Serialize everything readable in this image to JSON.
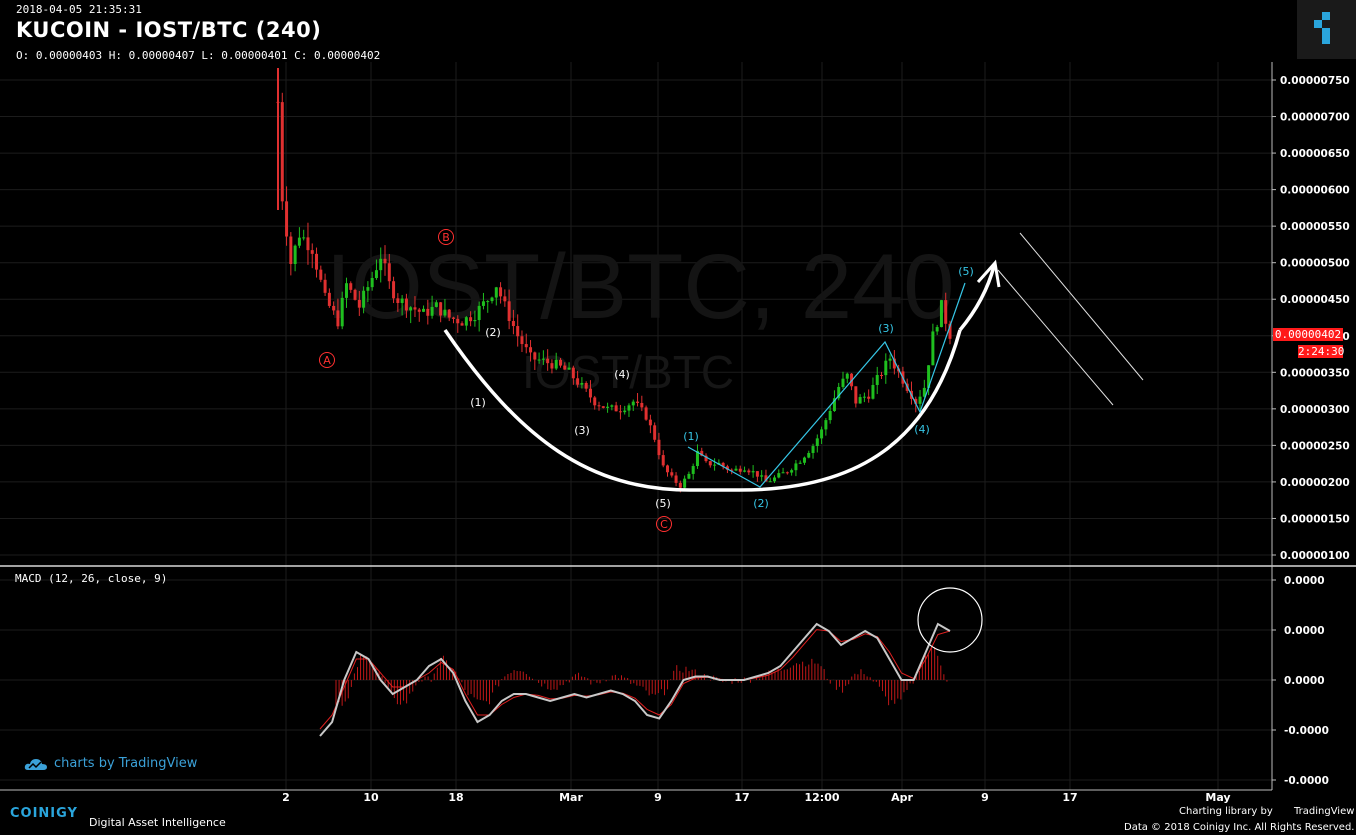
{
  "header": {
    "timestamp": "2018-04-05 21:35:31",
    "title": "KUCOIN - IOST/BTC (240)",
    "ohlc": "O: 0.00000403 H: 0.00000407 L: 0.00000401 C: 0.00000402"
  },
  "watermark": {
    "main": "IOST/BTC, 240",
    "sub": "IOST/BTC"
  },
  "price_axis_labels": [
    "0.00000750",
    "0.00000700",
    "0.00000650",
    "0.00000600",
    "0.00000550",
    "0.00000500",
    "0.00000450",
    "0.00000400",
    "0.00000350",
    "0.00000300",
    "0.00000250",
    "0.00000200",
    "0.00000150",
    "0.00000100"
  ],
  "last_price_tag": "0.00000402",
  "countdown_tag": "2:24:30",
  "macd": {
    "label": "MACD (12, 26, close, 9)",
    "axis_labels": [
      "0.0000",
      "0.0000",
      "0.0000",
      "-0.0000",
      "-0.0000"
    ]
  },
  "time_axis_labels": [
    "2",
    "10",
    "18",
    "Mar",
    "9",
    "17",
    "12:00",
    "Apr",
    "9",
    "17",
    "May"
  ],
  "wave_labels": {
    "abc": [
      "A",
      "B",
      "C"
    ],
    "white": [
      "(1)",
      "(2)",
      "(3)",
      "(4)",
      "(5)"
    ],
    "cyan": [
      "(1)",
      "(2)",
      "(3)",
      "(4)",
      "(5)"
    ]
  },
  "branding": {
    "tradingview": "charts by TradingView",
    "coinigy": "COINIGY",
    "coinigy_tagline": "Digital Asset Intelligence",
    "charting_library": "Charting library by",
    "tradingview_small": "TradingView",
    "data_copyright": "Data © 2018   Coinigy Inc. All Rights Reserved."
  },
  "colors": {
    "background": "#000000",
    "candle_up": "#1fbf1f",
    "candle_down": "#e03030",
    "wave_cyan": "#36c6e6",
    "wave_red": "#ff3030",
    "price_tag": "#ff1a1a",
    "macd_line": "#c8c8c8",
    "signal_line": "#e02020"
  },
  "chart_data": [
    {
      "type": "candlestick",
      "title": "KUCOIN - IOST/BTC (240)",
      "ylim": [
        9.5e-07,
        7.7e-06
      ],
      "x_ticks": [
        "2",
        "10",
        "18",
        "Mar",
        "9",
        "17",
        "12:00",
        "Apr",
        "9",
        "17",
        "May"
      ],
      "close_path": [
        [
          0,
          7.2e-06
        ],
        [
          1,
          5.9e-06
        ],
        [
          3,
          5e-06
        ],
        [
          5,
          5.4e-06
        ],
        [
          8,
          5.2e-06
        ],
        [
          11,
          4.5e-06
        ],
        [
          14,
          4.2e-06
        ],
        [
          16,
          4.7e-06
        ],
        [
          19,
          4.4e-06
        ],
        [
          22,
          4.8e-06
        ],
        [
          24,
          5.1e-06
        ],
        [
          26,
          4.7e-06
        ],
        [
          28,
          4.5e-06
        ],
        [
          31,
          4.4e-06
        ],
        [
          34,
          4.3e-06
        ],
        [
          37,
          4.4e-06
        ],
        [
          40,
          4.25e-06
        ],
        [
          43,
          4.2e-06
        ],
        [
          46,
          4.3e-06
        ],
        [
          49,
          4.5e-06
        ],
        [
          51,
          4.7e-06
        ],
        [
          53,
          4.4e-06
        ],
        [
          56,
          4e-06
        ],
        [
          59,
          3.7e-06
        ],
        [
          62,
          3.65e-06
        ],
        [
          65,
          3.6e-06
        ],
        [
          68,
          3.5e-06
        ],
        [
          71,
          3.3e-06
        ],
        [
          74,
          3.1e-06
        ],
        [
          77,
          3e-06
        ],
        [
          80,
          3e-06
        ],
        [
          83,
          3.1e-06
        ],
        [
          86,
          2.9e-06
        ],
        [
          88,
          2.6e-06
        ],
        [
          90,
          2.2e-06
        ],
        [
          92,
          2.05e-06
        ],
        [
          94,
          1.95e-06
        ],
        [
          96,
          2.1e-06
        ],
        [
          98,
          2.4e-06
        ],
        [
          100,
          2.25e-06
        ],
        [
          103,
          2.25e-06
        ],
        [
          106,
          2.15e-06
        ],
        [
          109,
          2.2e-06
        ],
        [
          112,
          2.1e-06
        ],
        [
          114,
          2e-06
        ],
        [
          116,
          2.05e-06
        ],
        [
          119,
          2.15e-06
        ],
        [
          122,
          2.3e-06
        ],
        [
          125,
          2.5e-06
        ],
        [
          127,
          2.7e-06
        ],
        [
          129,
          3e-06
        ],
        [
          131,
          3.3e-06
        ],
        [
          133,
          3.45e-06
        ],
        [
          135,
          3.1e-06
        ],
        [
          138,
          3.2e-06
        ],
        [
          141,
          3.5e-06
        ],
        [
          143,
          3.7e-06
        ],
        [
          145,
          3.5e-06
        ],
        [
          147,
          3.3e-06
        ],
        [
          149,
          3.1e-06
        ],
        [
          151,
          3.3e-06
        ],
        [
          153,
          4e-06
        ],
        [
          155,
          4.4e-06
        ],
        [
          157,
          4.02e-06
        ]
      ]
    },
    {
      "type": "line",
      "title": "MACD (12, 26, close, 9)",
      "series": [
        {
          "name": "MACD",
          "values": [
            -0.8,
            -0.6,
            0.0,
            0.4,
            0.3,
            0.0,
            -0.2,
            -0.1,
            0.0,
            0.2,
            0.3,
            0.1,
            -0.3,
            -0.6,
            -0.5,
            -0.3,
            -0.2,
            -0.2,
            -0.25,
            -0.3,
            -0.25,
            -0.2,
            -0.25,
            -0.2,
            -0.15,
            -0.2,
            -0.3,
            -0.5,
            -0.55,
            -0.3,
            0.0,
            0.05,
            0.05,
            0.0,
            0.0,
            0.0,
            0.05,
            0.1,
            0.2,
            0.4,
            0.6,
            0.8,
            0.7,
            0.5,
            0.6,
            0.7,
            0.6,
            0.3,
            0.0,
            0.0,
            0.4,
            0.8,
            0.7
          ]
        },
        {
          "name": "Signal",
          "values": [
            -0.7,
            -0.5,
            -0.1,
            0.3,
            0.3,
            0.1,
            -0.1,
            -0.1,
            0.0,
            0.1,
            0.25,
            0.15,
            -0.2,
            -0.5,
            -0.5,
            -0.35,
            -0.25,
            -0.2,
            -0.22,
            -0.27,
            -0.26,
            -0.22,
            -0.23,
            -0.21,
            -0.17,
            -0.19,
            -0.26,
            -0.42,
            -0.5,
            -0.35,
            -0.05,
            0.03,
            0.04,
            0.01,
            0.0,
            0.0,
            0.03,
            0.07,
            0.15,
            0.32,
            0.52,
            0.72,
            0.7,
            0.55,
            0.58,
            0.66,
            0.62,
            0.4,
            0.1,
            0.02,
            0.3,
            0.65,
            0.7
          ]
        }
      ]
    }
  ]
}
